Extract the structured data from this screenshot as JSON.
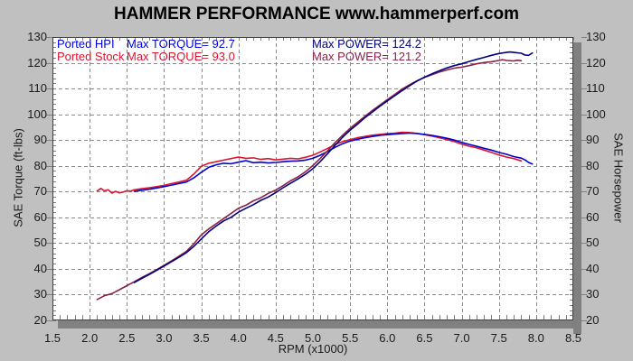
{
  "title": "HAMMER PERFORMANCE www.hammerperf.com",
  "colors": {
    "background": "#C0C0C0",
    "plot_background": "#FFFFFF",
    "grid": "#8C8C8C",
    "frame": "#404040",
    "shadow": "#808080",
    "minor_tick": "#808080",
    "label": "#1A1A1A",
    "torque_hpi": "#0000CC",
    "torque_stock": "#DC1432",
    "power_hpi": "#000080",
    "power_stock": "#8B2048"
  },
  "legend": {
    "rows": [
      {
        "name": "Ported HPI",
        "torque": "Max TORQUE= 92.7",
        "power": "Max POWER= 124.2",
        "name_color": "#0000E0",
        "power_color": "#000080"
      },
      {
        "name": "Ported Stock",
        "torque": "Max TORQUE= 93.0",
        "power": "Max POWER= 121.2",
        "name_color": "#DC1432",
        "power_color": "#8B2048"
      }
    ]
  },
  "chart_data": {
    "type": "line",
    "title": "HAMMER PERFORMANCE www.hammerperf.com",
    "xlabel": "RPM (x1000)",
    "ylabel_left": "SAE Torque (ft-lbs)",
    "ylabel_right": "SAE Horsepower",
    "xlim": [
      1.5,
      8.5
    ],
    "ylim": [
      20,
      130
    ],
    "x_ticks": [
      "1.5",
      "2.0",
      "2.5",
      "3.0",
      "3.5",
      "4.0",
      "4.5",
      "5.0",
      "5.5",
      "6.0",
      "6.5",
      "7.0",
      "7.5",
      "8.0",
      "8.5"
    ],
    "y_ticks": [
      "20",
      "30",
      "40",
      "50",
      "60",
      "70",
      "80",
      "90",
      "100",
      "110",
      "120",
      "130"
    ],
    "x_minor_step": 0.1,
    "y_minor_step": 2,
    "grid": true,
    "legend_position": "top-left-inside",
    "max_values": {
      "hpi_torque": 92.7,
      "stock_torque": 93.0,
      "hpi_power": 124.2,
      "stock_power": 121.2
    },
    "series": [
      {
        "name": "Ported Stock Torque",
        "unit": "ft-lbs",
        "color": "#DC1432",
        "points": [
          [
            2.1,
            70.2
          ],
          [
            2.15,
            71.2
          ],
          [
            2.2,
            70.3
          ],
          [
            2.25,
            70.7
          ],
          [
            2.3,
            69.4
          ],
          [
            2.35,
            70.1
          ],
          [
            2.4,
            69.5
          ],
          [
            2.45,
            69.8
          ],
          [
            2.5,
            70.3
          ],
          [
            2.55,
            70.2
          ],
          [
            2.6,
            70.7
          ],
          [
            2.7,
            71.1
          ],
          [
            2.8,
            71.5
          ],
          [
            2.9,
            71.9
          ],
          [
            3.0,
            72.4
          ],
          [
            3.1,
            73.1
          ],
          [
            3.2,
            73.7
          ],
          [
            3.3,
            74.4
          ],
          [
            3.4,
            76.8
          ],
          [
            3.5,
            79.8
          ],
          [
            3.6,
            81.0
          ],
          [
            3.7,
            81.6
          ],
          [
            3.8,
            82.2
          ],
          [
            3.9,
            82.8
          ],
          [
            4.0,
            83.4
          ],
          [
            4.1,
            82.9
          ],
          [
            4.2,
            83.1
          ],
          [
            4.3,
            82.5
          ],
          [
            4.4,
            82.8
          ],
          [
            4.5,
            82.3
          ],
          [
            4.6,
            82.6
          ],
          [
            4.7,
            82.9
          ],
          [
            4.8,
            82.7
          ],
          [
            4.9,
            83.3
          ],
          [
            5.0,
            84.1
          ],
          [
            5.1,
            85.4
          ],
          [
            5.2,
            86.8
          ],
          [
            5.3,
            88.3
          ],
          [
            5.4,
            89.4
          ],
          [
            5.5,
            90.2
          ],
          [
            5.6,
            90.9
          ],
          [
            5.7,
            91.4
          ],
          [
            5.8,
            91.9
          ],
          [
            5.9,
            92.2
          ],
          [
            6.0,
            92.5
          ],
          [
            6.1,
            92.7
          ],
          [
            6.2,
            93.0
          ],
          [
            6.3,
            92.9
          ],
          [
            6.4,
            92.6
          ],
          [
            6.5,
            92.1
          ],
          [
            6.6,
            91.5
          ],
          [
            6.7,
            90.9
          ],
          [
            6.8,
            90.2
          ],
          [
            6.9,
            89.4
          ],
          [
            7.0,
            88.4
          ],
          [
            7.1,
            87.6
          ],
          [
            7.2,
            87.0
          ],
          [
            7.3,
            86.1
          ],
          [
            7.4,
            85.2
          ],
          [
            7.5,
            84.2
          ],
          [
            7.6,
            83.4
          ],
          [
            7.7,
            82.8
          ],
          [
            7.8,
            81.9
          ]
        ]
      },
      {
        "name": "Ported HPI Torque",
        "unit": "ft-lbs",
        "color": "#0000CC",
        "points": [
          [
            2.6,
            70.1
          ],
          [
            2.7,
            70.5
          ],
          [
            2.8,
            70.9
          ],
          [
            2.9,
            71.4
          ],
          [
            3.0,
            71.9
          ],
          [
            3.1,
            72.5
          ],
          [
            3.2,
            73.1
          ],
          [
            3.3,
            73.7
          ],
          [
            3.4,
            75.3
          ],
          [
            3.5,
            77.5
          ],
          [
            3.6,
            79.4
          ],
          [
            3.7,
            80.4
          ],
          [
            3.8,
            81.0
          ],
          [
            3.9,
            80.8
          ],
          [
            4.0,
            81.4
          ],
          [
            4.1,
            82.0
          ],
          [
            4.2,
            81.2
          ],
          [
            4.3,
            81.4
          ],
          [
            4.4,
            81.1
          ],
          [
            4.5,
            81.3
          ],
          [
            4.6,
            81.6
          ],
          [
            4.7,
            81.8
          ],
          [
            4.8,
            81.9
          ],
          [
            4.9,
            82.2
          ],
          [
            5.0,
            82.9
          ],
          [
            5.1,
            84.1
          ],
          [
            5.2,
            85.6
          ],
          [
            5.3,
            87.2
          ],
          [
            5.4,
            88.6
          ],
          [
            5.5,
            89.6
          ],
          [
            5.6,
            90.3
          ],
          [
            5.7,
            90.9
          ],
          [
            5.8,
            91.4
          ],
          [
            5.9,
            91.8
          ],
          [
            6.0,
            92.1
          ],
          [
            6.1,
            92.3
          ],
          [
            6.2,
            92.5
          ],
          [
            6.3,
            92.7
          ],
          [
            6.4,
            92.5
          ],
          [
            6.5,
            92.2
          ],
          [
            6.6,
            91.8
          ],
          [
            6.7,
            91.3
          ],
          [
            6.8,
            90.7
          ],
          [
            6.9,
            90.0
          ],
          [
            7.0,
            89.1
          ],
          [
            7.1,
            88.3
          ],
          [
            7.2,
            87.6
          ],
          [
            7.3,
            86.8
          ],
          [
            7.4,
            86.1
          ],
          [
            7.5,
            85.2
          ],
          [
            7.6,
            84.5
          ],
          [
            7.7,
            83.6
          ],
          [
            7.8,
            83.0
          ],
          [
            7.85,
            82.3
          ],
          [
            7.9,
            81.3
          ],
          [
            7.95,
            80.7
          ]
        ]
      },
      {
        "name": "Ported Stock Power",
        "unit": "hp",
        "color": "#8B2048",
        "points": [
          [
            2.1,
            28.1
          ],
          [
            2.2,
            29.6
          ],
          [
            2.3,
            30.4
          ],
          [
            2.4,
            31.9
          ],
          [
            2.5,
            33.5
          ],
          [
            2.6,
            35.0
          ],
          [
            2.7,
            36.6
          ],
          [
            2.8,
            38.1
          ],
          [
            2.9,
            39.7
          ],
          [
            3.0,
            41.4
          ],
          [
            3.1,
            43.1
          ],
          [
            3.2,
            44.9
          ],
          [
            3.3,
            46.8
          ],
          [
            3.4,
            49.7
          ],
          [
            3.5,
            53.2
          ],
          [
            3.6,
            55.5
          ],
          [
            3.7,
            57.5
          ],
          [
            3.8,
            59.5
          ],
          [
            3.9,
            61.5
          ],
          [
            4.0,
            63.5
          ],
          [
            4.1,
            64.7
          ],
          [
            4.2,
            66.4
          ],
          [
            4.3,
            67.6
          ],
          [
            4.4,
            69.3
          ],
          [
            4.5,
            70.6
          ],
          [
            4.6,
            72.3
          ],
          [
            4.7,
            74.2
          ],
          [
            4.8,
            75.7
          ],
          [
            4.9,
            77.7
          ],
          [
            5.0,
            80.1
          ],
          [
            5.1,
            82.9
          ],
          [
            5.2,
            85.9
          ],
          [
            5.3,
            89.1
          ],
          [
            5.4,
            91.9
          ],
          [
            5.5,
            94.5
          ],
          [
            5.6,
            96.9
          ],
          [
            5.7,
            99.2
          ],
          [
            5.8,
            101.5
          ],
          [
            5.9,
            103.6
          ],
          [
            6.0,
            105.7
          ],
          [
            6.1,
            107.7
          ],
          [
            6.2,
            109.8
          ],
          [
            6.3,
            111.5
          ],
          [
            6.4,
            113.0
          ],
          [
            6.5,
            114.3
          ],
          [
            6.6,
            115.4
          ],
          [
            6.7,
            116.4
          ],
          [
            6.8,
            117.2
          ],
          [
            6.9,
            117.9
          ],
          [
            7.0,
            118.3
          ],
          [
            7.1,
            118.9
          ],
          [
            7.2,
            119.6
          ],
          [
            7.3,
            120.1
          ],
          [
            7.4,
            120.4
          ],
          [
            7.5,
            120.9
          ],
          [
            7.55,
            121.2
          ],
          [
            7.6,
            120.9
          ],
          [
            7.7,
            120.7
          ],
          [
            7.75,
            121.0
          ],
          [
            7.8,
            120.8
          ]
        ]
      },
      {
        "name": "Ported HPI Power",
        "unit": "hp",
        "color": "#000080",
        "points": [
          [
            2.6,
            34.7
          ],
          [
            2.7,
            36.3
          ],
          [
            2.8,
            37.8
          ],
          [
            2.9,
            39.4
          ],
          [
            3.0,
            41.1
          ],
          [
            3.1,
            42.8
          ],
          [
            3.2,
            44.5
          ],
          [
            3.3,
            46.3
          ],
          [
            3.4,
            48.7
          ],
          [
            3.5,
            51.6
          ],
          [
            3.6,
            54.4
          ],
          [
            3.7,
            56.6
          ],
          [
            3.8,
            58.6
          ],
          [
            3.9,
            60.0
          ],
          [
            4.0,
            62.0
          ],
          [
            4.1,
            63.5
          ],
          [
            4.2,
            64.9
          ],
          [
            4.3,
            66.6
          ],
          [
            4.4,
            67.9
          ],
          [
            4.5,
            69.6
          ],
          [
            4.6,
            71.5
          ],
          [
            4.7,
            73.2
          ],
          [
            4.8,
            74.9
          ],
          [
            4.9,
            76.7
          ],
          [
            5.0,
            78.9
          ],
          [
            5.1,
            81.7
          ],
          [
            5.2,
            84.8
          ],
          [
            5.3,
            88.0
          ],
          [
            5.4,
            91.1
          ],
          [
            5.5,
            93.8
          ],
          [
            5.6,
            96.2
          ],
          [
            5.7,
            98.7
          ],
          [
            5.8,
            100.9
          ],
          [
            5.9,
            103.1
          ],
          [
            6.0,
            105.2
          ],
          [
            6.1,
            107.2
          ],
          [
            6.2,
            109.2
          ],
          [
            6.3,
            111.1
          ],
          [
            6.4,
            112.9
          ],
          [
            6.5,
            114.4
          ],
          [
            6.6,
            115.7
          ],
          [
            6.7,
            116.9
          ],
          [
            6.8,
            118.0
          ],
          [
            6.9,
            118.9
          ],
          [
            7.0,
            119.6
          ],
          [
            7.1,
            120.5
          ],
          [
            7.2,
            121.3
          ],
          [
            7.3,
            122.1
          ],
          [
            7.4,
            122.9
          ],
          [
            7.5,
            123.6
          ],
          [
            7.6,
            124.0
          ],
          [
            7.65,
            124.2
          ],
          [
            7.7,
            124.0
          ],
          [
            7.8,
            123.7
          ],
          [
            7.85,
            123.0
          ],
          [
            7.9,
            122.9
          ],
          [
            7.95,
            123.8
          ]
        ]
      }
    ]
  }
}
